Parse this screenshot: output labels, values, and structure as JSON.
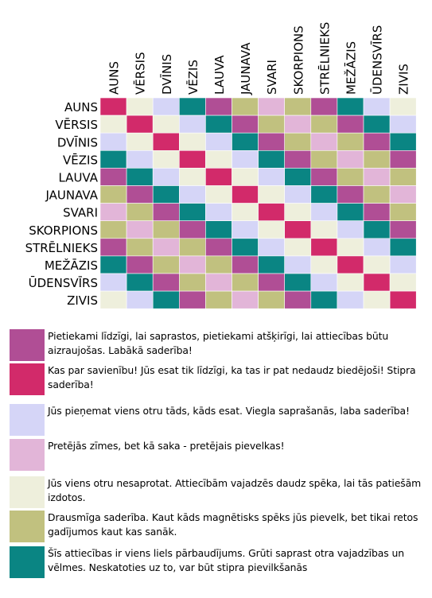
{
  "colors": {
    "magenta": "#b04e95",
    "crimson": "#d22a6a",
    "lavender": "#d5d5f7",
    "pink": "#e2b5d8",
    "cream": "#eeefdc",
    "olive": "#c1c17f",
    "teal": "#0a8583"
  },
  "chart_data": {
    "type": "heatmap",
    "categories": [
      "AUNS",
      "VĒRSIS",
      "DVĪNIS",
      "VĒZIS",
      "LAUVA",
      "JAUNAVA",
      "SVARI",
      "SKORPIONS",
      "STRĒLNIEKS",
      "MEŽĀZIS",
      "ŪDENSVĪRS",
      "ZIVIS"
    ],
    "matrix": [
      [
        "crimson",
        "cream",
        "lavender",
        "teal",
        "magenta",
        "olive",
        "pink",
        "olive",
        "magenta",
        "teal",
        "lavender",
        "cream"
      ],
      [
        "cream",
        "crimson",
        "cream",
        "lavender",
        "teal",
        "magenta",
        "olive",
        "pink",
        "olive",
        "magenta",
        "teal",
        "lavender"
      ],
      [
        "lavender",
        "cream",
        "crimson",
        "cream",
        "lavender",
        "teal",
        "magenta",
        "olive",
        "pink",
        "olive",
        "magenta",
        "teal"
      ],
      [
        "teal",
        "lavender",
        "cream",
        "crimson",
        "cream",
        "lavender",
        "teal",
        "magenta",
        "olive",
        "pink",
        "olive",
        "magenta"
      ],
      [
        "magenta",
        "teal",
        "lavender",
        "cream",
        "crimson",
        "cream",
        "lavender",
        "teal",
        "magenta",
        "olive",
        "pink",
        "olive"
      ],
      [
        "olive",
        "magenta",
        "teal",
        "lavender",
        "cream",
        "crimson",
        "cream",
        "lavender",
        "teal",
        "magenta",
        "olive",
        "pink"
      ],
      [
        "pink",
        "olive",
        "magenta",
        "teal",
        "lavender",
        "cream",
        "crimson",
        "cream",
        "lavender",
        "teal",
        "magenta",
        "olive"
      ],
      [
        "olive",
        "pink",
        "olive",
        "magenta",
        "teal",
        "lavender",
        "cream",
        "crimson",
        "cream",
        "lavender",
        "teal",
        "magenta"
      ],
      [
        "magenta",
        "olive",
        "pink",
        "olive",
        "magenta",
        "teal",
        "lavender",
        "cream",
        "crimson",
        "cream",
        "lavender",
        "teal"
      ],
      [
        "teal",
        "magenta",
        "olive",
        "pink",
        "olive",
        "magenta",
        "teal",
        "lavender",
        "cream",
        "crimson",
        "cream",
        "lavender"
      ],
      [
        "lavender",
        "teal",
        "magenta",
        "olive",
        "pink",
        "olive",
        "magenta",
        "teal",
        "lavender",
        "cream",
        "crimson",
        "cream"
      ],
      [
        "cream",
        "lavender",
        "teal",
        "magenta",
        "olive",
        "pink",
        "olive",
        "magenta",
        "teal",
        "lavender",
        "cream",
        "crimson"
      ]
    ],
    "legend": [
      {
        "color": "magenta",
        "text": "Pietiekami līdzīgi, lai saprastos, pietiekami atšķirīgi, lai attiecības būtu aizraujošas. Labākā saderība!"
      },
      {
        "color": "crimson",
        "text": "Kas par savienību! Jūs esat tik līdzīgi, ka tas ir pat nedaudz biedējoši! Stipra saderība!"
      },
      {
        "color": "lavender",
        "text": "Jūs pieņemat viens otru tāds, kāds esat. Viegla saprašanās, laba saderība!"
      },
      {
        "color": "pink",
        "text": "Pretējās zīmes, bet kā saka - pretējais pievelkas!"
      },
      {
        "color": "cream",
        "text": "Jūs viens otru nesaprotat. Attiecībām vajadzēs daudz spēka, lai tās patiešām izdotos."
      },
      {
        "color": "olive",
        "text": "Drausmīga saderība. Kaut kāds magnētisks spēks jūs pievelk, bet tikai retos gadījumos kaut kas sanāk."
      },
      {
        "color": "teal",
        "text": "Šīs attiecības ir viens liels pārbaudījums. Grūti saprast otra vajadzības un vēlmes. Neskatoties uz to, var būt stipra pievilkšanās"
      }
    ]
  }
}
